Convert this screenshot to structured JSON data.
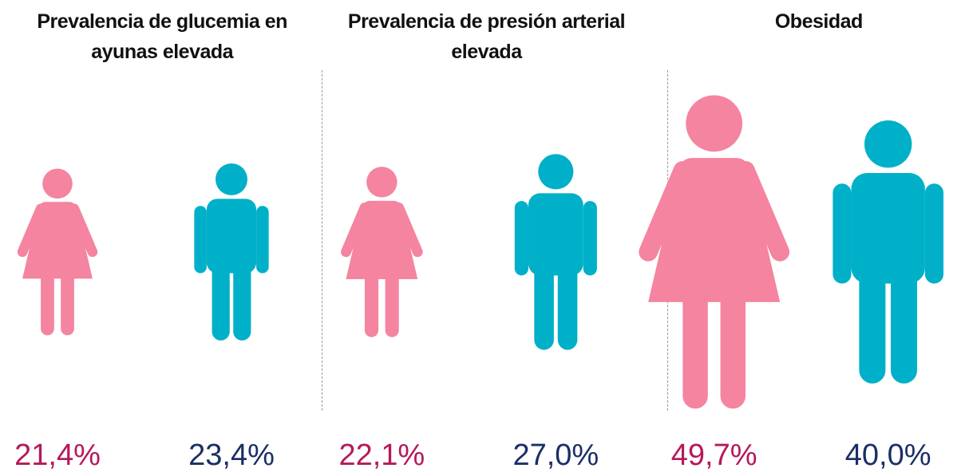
{
  "chart_data": [
    {
      "type": "pictogram",
      "title": "Prevalencia de glucemia en ayunas elevada",
      "values": [
        21.4,
        23.4
      ],
      "value_labels": [
        "21,4%",
        "23,4%"
      ],
      "colors": [
        "#f4849f",
        "#00b0c8"
      ],
      "label_colors": [
        "#b5195b",
        "#1a2f66"
      ]
    },
    {
      "type": "pictogram",
      "title": "Prevalencia de presión arterial elevada",
      "values": [
        22.1,
        27.0
      ],
      "value_labels": [
        "22,1%",
        "27,0%"
      ],
      "colors": [
        "#f4849f",
        "#00b0c8"
      ],
      "label_colors": [
        "#b5195b",
        "#1a2f66"
      ]
    },
    {
      "type": "pictogram",
      "title": "Obesidad",
      "values": [
        49.7,
        40.0
      ],
      "value_labels": [
        "49,7%",
        "40,0%"
      ],
      "colors": [
        "#f4849f",
        "#00b0c8"
      ],
      "label_colors": [
        "#b5195b",
        "#1a2f66"
      ]
    }
  ]
}
